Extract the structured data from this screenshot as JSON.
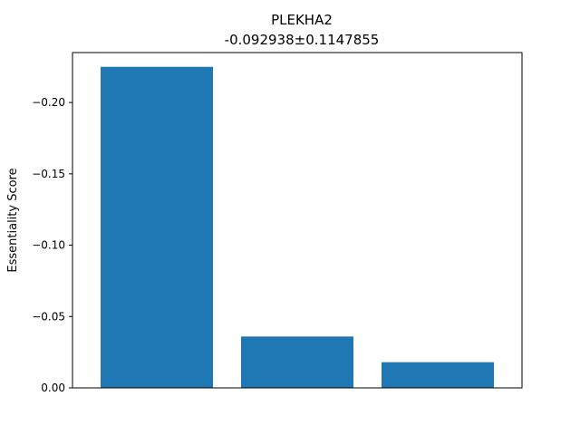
{
  "chart_data": {
    "type": "bar",
    "title": "PLEKHA2",
    "subtitle": "-0.092938±0.1147855",
    "xlabel": "",
    "ylabel": "Essentiality Score",
    "categories": [
      "",
      "",
      ""
    ],
    "values": [
      -0.225,
      -0.036,
      -0.018
    ],
    "ylim": [
      0.0,
      -0.235
    ],
    "yaxis_inverted": true,
    "yticks": [
      0.0,
      -0.05,
      -0.1,
      -0.15,
      -0.2
    ],
    "ytick_labels": [
      "0.00",
      "−0.05",
      "−0.10",
      "−0.15",
      "−0.20"
    ],
    "grid": false,
    "bar_color": "#1f77b4"
  }
}
